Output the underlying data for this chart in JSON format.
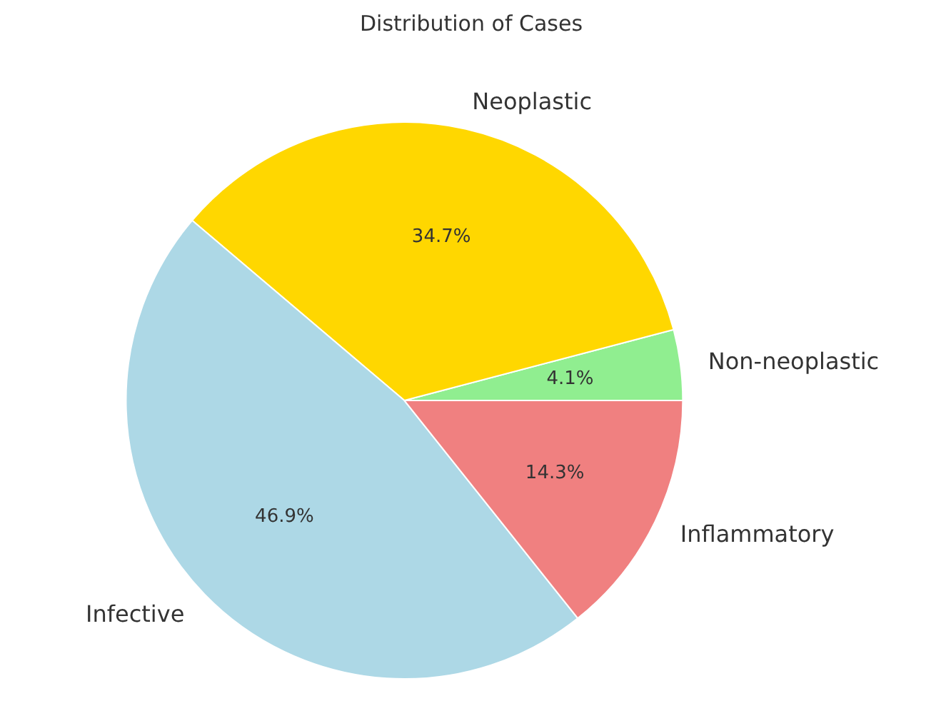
{
  "chart_data": {
    "type": "pie",
    "title": "Distribution of Cases",
    "categories": [
      "Non-neoplastic",
      "Neoplastic",
      "Infective",
      "Inflammatory"
    ],
    "values": [
      4.1,
      34.7,
      46.9,
      14.3
    ],
    "colors": [
      "#90ee90",
      "#ffd700",
      "#add8e6",
      "#f08080"
    ],
    "value_labels": [
      "4.1%",
      "34.7%",
      "46.9%",
      "14.3%"
    ]
  }
}
